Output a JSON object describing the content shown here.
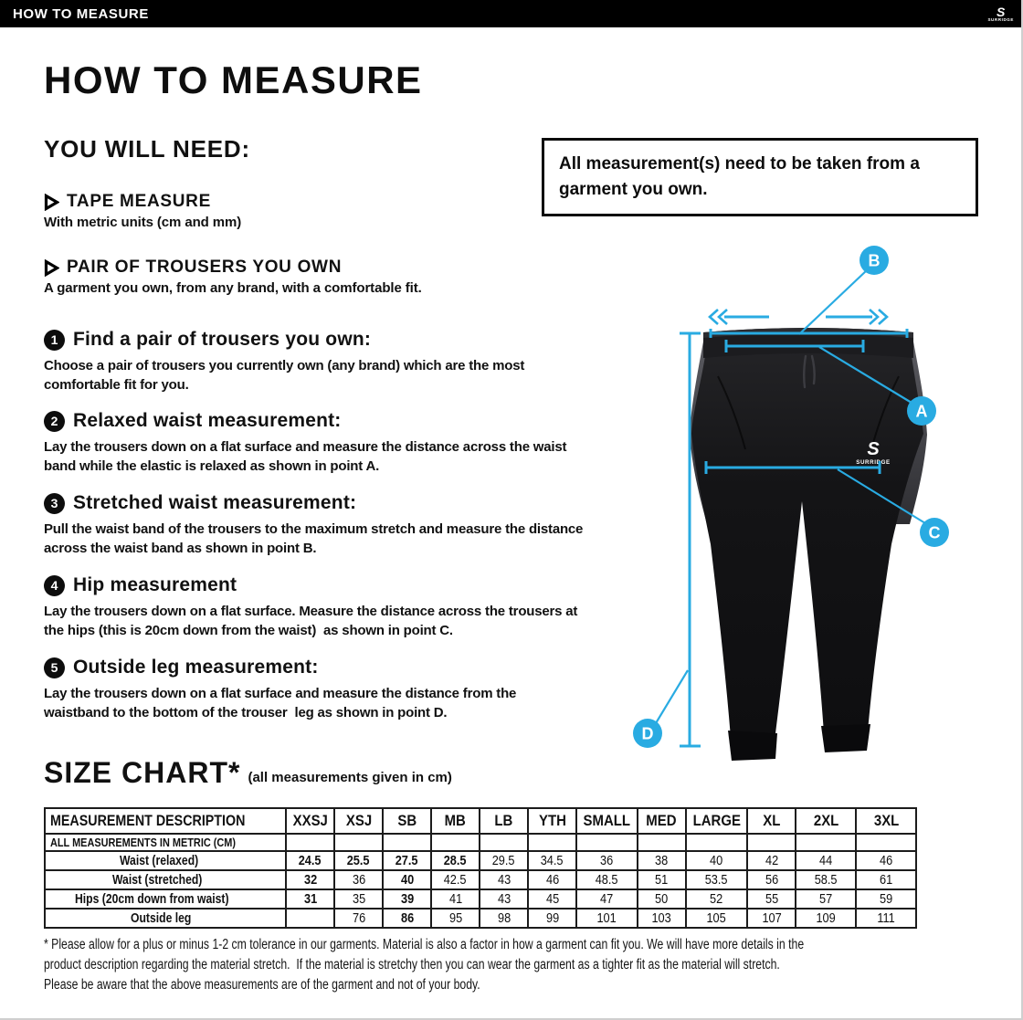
{
  "header": {
    "title": "HOW TO MEASURE",
    "brand": "SURRIDGE"
  },
  "page": {
    "title": "HOW TO MEASURE",
    "you_will_need": {
      "heading": "YOU WILL NEED:",
      "items": [
        {
          "label": "TAPE MEASURE",
          "description": "With metric units (cm and mm)"
        },
        {
          "label": "PAIR OF TROUSERS YOU OWN",
          "description": "A garment you own, from any brand, with a comfortable fit."
        }
      ]
    },
    "note": "All measurement(s) need to be taken from a garment you own.",
    "steps": [
      {
        "number": "1",
        "title": "Find a pair of trousers you own:",
        "description": "Choose a pair of trousers you currently own (any brand) which are the most comfortable fit for you."
      },
      {
        "number": "2",
        "title": "Relaxed waist measurement:",
        "description": "Lay the trousers down on a flat surface and measure the distance across the waist band while the elastic is relaxed as shown in point A."
      },
      {
        "number": "3",
        "title": "Stretched waist measurement:",
        "description": "Pull the waist band of the trousers to the maximum stretch and measure the distance across the waist band as shown in point B."
      },
      {
        "number": "4",
        "title": "Hip measurement",
        "description": "Lay the trousers down on a flat surface. Measure the distance across the trousers at the hips (this is 20cm down from the waist)  as shown in point C."
      },
      {
        "number": "5",
        "title": "Outside leg measurement:",
        "description": "Lay the trousers down on a flat surface and measure the distance from the waistband to the bottom of the trouser  leg as shown in point D."
      }
    ],
    "diagram": {
      "labels": [
        "A",
        "B",
        "C",
        "D"
      ],
      "brand": "SURRIDGE",
      "accent_color": "#29ABE2"
    },
    "size_chart": {
      "heading": "SIZE CHART*",
      "subheading": "(all measurements given in cm)",
      "table": {
        "description_header": "MEASUREMENT DESCRIPTION",
        "size_headers": [
          "XXSJ",
          "XSJ",
          "SB",
          "MB",
          "LB",
          "YTH",
          "SMALL",
          "MED",
          "LARGE",
          "XL",
          "2XL",
          "3XL"
        ],
        "metric_row_label": "ALL MEASUREMENTS IN METRIC (CM)",
        "rows": [
          {
            "label": "Waist (relaxed)",
            "values": [
              "24.5",
              "25.5",
              "27.5",
              "28.5",
              "29.5",
              "34.5",
              "36",
              "38",
              "40",
              "42",
              "44",
              "46"
            ],
            "bold": [
              1,
              1,
              1,
              1,
              0,
              0,
              0,
              0,
              0,
              0,
              0,
              0
            ]
          },
          {
            "label": "Waist (stretched)",
            "values": [
              "32",
              "36",
              "40",
              "42.5",
              "43",
              "46",
              "48.5",
              "51",
              "53.5",
              "56",
              "58.5",
              "61"
            ],
            "bold": [
              1,
              0,
              1,
              0,
              0,
              0,
              0,
              0,
              0,
              0,
              0,
              0
            ]
          },
          {
            "label": "Hips (20cm down from waist)",
            "values": [
              "31",
              "35",
              "39",
              "41",
              "43",
              "45",
              "47",
              "50",
              "52",
              "55",
              "57",
              "59"
            ],
            "bold": [
              1,
              0,
              1,
              0,
              0,
              0,
              0,
              0,
              0,
              0,
              0,
              0
            ]
          },
          {
            "label": "Outside leg",
            "values": [
              "",
              "76",
              "86",
              "95",
              "98",
              "99",
              "101",
              "103",
              "105",
              "107",
              "109",
              "111"
            ],
            "bold": [
              0,
              0,
              1,
              0,
              0,
              0,
              0,
              0,
              0,
              0,
              0,
              0
            ]
          }
        ]
      }
    },
    "footnote": "* Please allow for a plus or minus 1-2 cm tolerance in our garments. Material is also a factor in how a garment can fit you. We will have more details in the product description regarding the material stretch.  If the material is stretchy then you can wear the garment as a tighter fit as the material will stretch.  Please be aware that the above measurements are of the garment and not of your body."
  }
}
